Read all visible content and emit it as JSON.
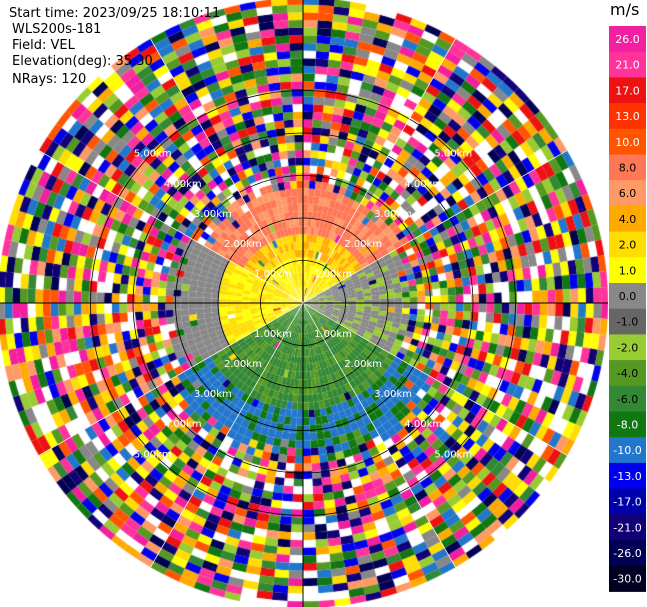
{
  "header": {
    "start_time": "Start time: 2023/09/25 18:10:11",
    "site": "WLS200s-181",
    "field": "Field: VEL",
    "elevation": "Elevation(deg): 35.30",
    "nrays": "NRays: 120"
  },
  "chart_data": {
    "type": "heatmap",
    "subtype": "polar-ppi",
    "field": "VEL",
    "unit": "m/s",
    "nrays": 120,
    "elevation_deg": 35.3,
    "range_rings_km": [
      1,
      2,
      3,
      4,
      5
    ],
    "range_ring_labels": [
      "1.00km",
      "2.00km",
      "3.00km",
      "4.00km",
      "5.00km"
    ],
    "colorbar": {
      "labels": [
        "26.0",
        "21.0",
        "17.0",
        "13.0",
        "10.0",
        "8.0",
        "6.0",
        "4.0",
        "2.0",
        "1.0",
        "0.0",
        "-1.0",
        "-2.0",
        "-4.0",
        "-6.0",
        "-8.0",
        "-10.0",
        "-13.0",
        "-17.0",
        "-21.0",
        "-26.0",
        "-30.0"
      ],
      "colors": [
        "#f21fa0",
        "#ff3399",
        "#ee1111",
        "#ff3300",
        "#ff5500",
        "#ff7755",
        "#ff9966",
        "#ffaa00",
        "#ffdd00",
        "#ffff00",
        "#888888",
        "#666666",
        "#99cc33",
        "#559922",
        "#338833",
        "#117711",
        "#2277cc",
        "#0000ee",
        "#0000aa",
        "#110077",
        "#000055",
        "#000022"
      ]
    },
    "sectors": [
      {
        "azimuth_range_deg": [
          270,
          90
        ],
        "range_km": [
          0,
          2.3
        ],
        "velocity_ms": 6.0,
        "description": "north"
      },
      {
        "azimuth_range_deg": [
          250,
          290
        ],
        "range_km": [
          0,
          2.0
        ],
        "velocity_ms": 2.0
      },
      {
        "azimuth_range_deg": [
          60,
          120
        ],
        "range_km": [
          0,
          2.0
        ],
        "velocity_ms": 0.0
      },
      {
        "azimuth_range_deg": [
          120,
          240
        ],
        "range_km": [
          0,
          3.5
        ],
        "velocity_ms": -6.0
      },
      {
        "azimuth_range_deg": [
          0,
          360
        ],
        "range_km": [
          3.0,
          6.0
        ],
        "velocity_ms": null,
        "description": "noise"
      }
    ]
  }
}
